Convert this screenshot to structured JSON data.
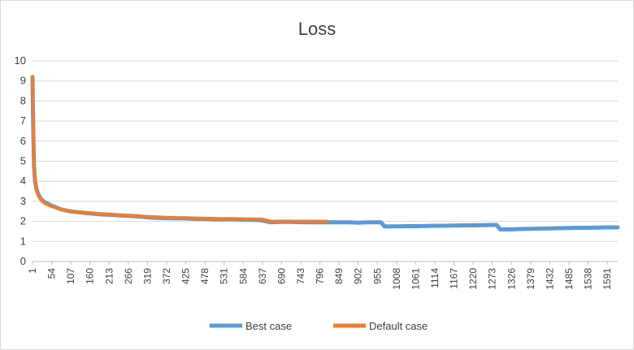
{
  "chart_data": {
    "type": "line",
    "title": "Loss",
    "xlabel": "",
    "ylabel": "",
    "ylim": [
      0,
      10
    ],
    "xlim": [
      1,
      1620
    ],
    "y_ticks": [
      "0",
      "1",
      "2",
      "3",
      "4",
      "5",
      "6",
      "7",
      "8",
      "9",
      "10"
    ],
    "x_tick_values": [
      1,
      54,
      107,
      160,
      213,
      266,
      319,
      372,
      425,
      478,
      531,
      584,
      637,
      690,
      743,
      796,
      849,
      902,
      955,
      1008,
      1061,
      1114,
      1167,
      1220,
      1273,
      1326,
      1379,
      1432,
      1485,
      1538,
      1591
    ],
    "x_ticks": [
      "1",
      "54",
      "107",
      "160",
      "213",
      "266",
      "319",
      "372",
      "425",
      "478",
      "531",
      "584",
      "637",
      "690",
      "743",
      "796",
      "849",
      "902",
      "955",
      "1008",
      "1061",
      "1114",
      "1167",
      "1220",
      "1273",
      "1326",
      "1379",
      "1432",
      "1485",
      "1538",
      "1591"
    ],
    "grid": true,
    "legend_position": "bottom",
    "series": [
      {
        "name": "Best case",
        "color": "#5b9bd5",
        "x": [
          1,
          3,
          5,
          8,
          12,
          18,
          25,
          35,
          54,
          80,
          107,
          130,
          160,
          190,
          213,
          240,
          266,
          290,
          319,
          345,
          372,
          400,
          425,
          450,
          478,
          505,
          531,
          560,
          584,
          610,
          637,
          660,
          690,
          715,
          743,
          770,
          796,
          820,
          849,
          875,
          902,
          930,
          955,
          965,
          975,
          1008,
          1035,
          1061,
          1090,
          1114,
          1140,
          1167,
          1195,
          1220,
          1245,
          1273,
          1285,
          1295,
          1326,
          1350,
          1379,
          1405,
          1432,
          1460,
          1485,
          1510,
          1538,
          1565,
          1591,
          1620
        ],
        "y": [
          9.2,
          6.5,
          4.8,
          4.0,
          3.6,
          3.3,
          3.1,
          2.95,
          2.78,
          2.6,
          2.5,
          2.45,
          2.4,
          2.35,
          2.33,
          2.3,
          2.28,
          2.25,
          2.2,
          2.18,
          2.16,
          2.15,
          2.15,
          2.12,
          2.12,
          2.1,
          2.1,
          2.1,
          2.08,
          2.08,
          2.05,
          1.95,
          1.98,
          1.97,
          1.96,
          1.95,
          1.95,
          1.96,
          1.95,
          1.95,
          1.93,
          1.95,
          1.95,
          1.95,
          1.75,
          1.75,
          1.76,
          1.76,
          1.77,
          1.78,
          1.78,
          1.79,
          1.8,
          1.8,
          1.81,
          1.82,
          1.82,
          1.6,
          1.6,
          1.62,
          1.63,
          1.64,
          1.65,
          1.66,
          1.67,
          1.68,
          1.68,
          1.69,
          1.7,
          1.7
        ]
      },
      {
        "name": "Default case",
        "color": "#ed7d31",
        "x": [
          1,
          3,
          5,
          8,
          12,
          18,
          25,
          35,
          54,
          80,
          107,
          130,
          160,
          190,
          213,
          240,
          266,
          290,
          319,
          345,
          372,
          400,
          425,
          450,
          478,
          505,
          531,
          560,
          584,
          610,
          637,
          660,
          690,
          715,
          743,
          770,
          796,
          815
        ],
        "y": [
          9.2,
          6.4,
          4.7,
          3.95,
          3.55,
          3.25,
          3.05,
          2.9,
          2.75,
          2.6,
          2.52,
          2.45,
          2.42,
          2.38,
          2.35,
          2.32,
          2.3,
          2.28,
          2.24,
          2.22,
          2.2,
          2.18,
          2.18,
          2.16,
          2.15,
          2.14,
          2.13,
          2.13,
          2.12,
          2.1,
          2.1,
          2.0,
          2.0,
          2.0,
          2.0,
          2.0,
          2.0,
          2.0
        ]
      }
    ]
  }
}
